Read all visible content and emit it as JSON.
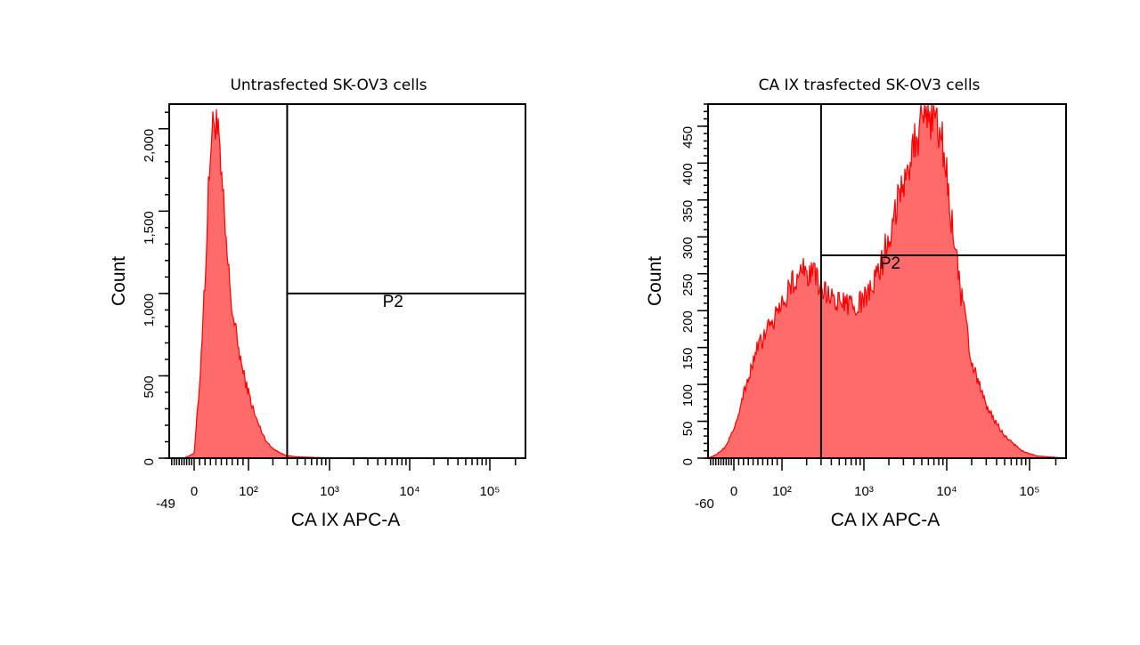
{
  "chart_data": [
    {
      "type": "area",
      "title": "Untrasfected SK-OV3 cells",
      "xlabel": "CA IX APC-A",
      "ylabel": "Count",
      "x_scale": "biexponential",
      "xlim": [
        -49,
        262144
      ],
      "ylim": [
        0,
        2150
      ],
      "x_ticks": [
        {
          "value": -49,
          "label": "-49"
        },
        {
          "value": 0,
          "label": "0"
        },
        {
          "value": 100,
          "label": "10²"
        },
        {
          "value": 1000,
          "label": "10³"
        },
        {
          "value": 10000,
          "label": "10⁴"
        },
        {
          "value": 100000,
          "label": "10⁵"
        }
      ],
      "y_ticks": [
        {
          "value": 0,
          "label": "0"
        },
        {
          "value": 500,
          "label": "500"
        },
        {
          "value": 1000,
          "label": "1,000"
        },
        {
          "value": 1500,
          "label": "1,500"
        },
        {
          "value": 2000,
          "label": "2,000"
        }
      ],
      "gate": {
        "name": "P2",
        "x_start": 300,
        "x_end": 262144,
        "y": 1000
      },
      "grid": false,
      "fill_color": "#ff6b6b",
      "line_color": "#ff0000",
      "x": [
        -49,
        -20,
        0,
        10,
        20,
        30,
        40,
        50,
        60,
        70,
        80,
        90,
        100,
        120,
        140,
        160,
        180,
        200,
        250,
        300,
        400,
        500,
        700,
        1000,
        2000,
        262144
      ],
      "values": [
        0,
        0,
        30,
        450,
        1100,
        1900,
        2100,
        1700,
        1250,
        900,
        700,
        520,
        400,
        260,
        180,
        120,
        80,
        60,
        30,
        15,
        8,
        6,
        4,
        2,
        0,
        0
      ]
    },
    {
      "type": "area",
      "title": "CA IX trasfected SK-OV3 cells",
      "xlabel": "CA IX APC-A",
      "ylabel": "Count",
      "x_scale": "biexponential",
      "xlim": [
        -60,
        262144
      ],
      "ylim": [
        0,
        480
      ],
      "x_ticks": [
        {
          "value": -60,
          "label": "-60"
        },
        {
          "value": 0,
          "label": "0"
        },
        {
          "value": 100,
          "label": "10²"
        },
        {
          "value": 1000,
          "label": "10³"
        },
        {
          "value": 10000,
          "label": "10⁴"
        },
        {
          "value": 100000,
          "label": "10⁵"
        }
      ],
      "y_ticks": [
        {
          "value": 0,
          "label": "0"
        },
        {
          "value": 50,
          "label": "50"
        },
        {
          "value": 100,
          "label": "100"
        },
        {
          "value": 150,
          "label": "150"
        },
        {
          "value": 200,
          "label": "200"
        },
        {
          "value": 250,
          "label": "250"
        },
        {
          "value": 300,
          "label": "300"
        },
        {
          "value": 350,
          "label": "350"
        },
        {
          "value": 400,
          "label": "400"
        },
        {
          "value": 450,
          "label": "450"
        }
      ],
      "gate": {
        "name": "P2",
        "x_start": 300,
        "x_end": 262144,
        "y": 275
      },
      "grid": false,
      "fill_color": "#ff6b6b",
      "line_color": "#ff0000",
      "x": [
        -60,
        -40,
        -20,
        0,
        15,
        30,
        50,
        80,
        100,
        130,
        160,
        200,
        250,
        300,
        400,
        500,
        700,
        900,
        1200,
        1600,
        2200,
        3000,
        4000,
        5500,
        7000,
        8500,
        10000,
        12000,
        15000,
        20000,
        30000,
        50000,
        80000,
        120000,
        262144
      ],
      "values": [
        0,
        5,
        15,
        40,
        75,
        110,
        150,
        185,
        210,
        235,
        250,
        255,
        245,
        230,
        220,
        210,
        205,
        210,
        225,
        260,
        320,
        380,
        430,
        460,
        470,
        440,
        380,
        300,
        220,
        130,
        70,
        30,
        10,
        3,
        0
      ]
    }
  ]
}
